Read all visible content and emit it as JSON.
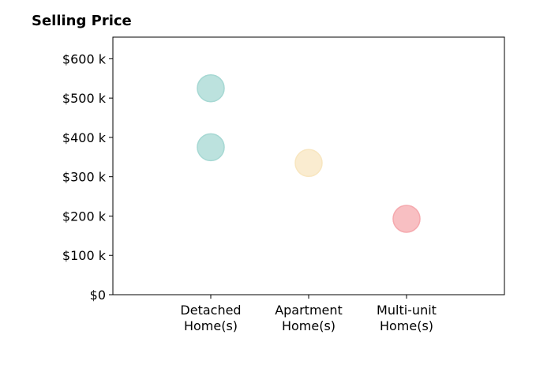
{
  "chart_data": {
    "type": "scatter",
    "title": "Selling Price",
    "xlabel": "",
    "ylabel": "",
    "categories": [
      [
        "Detached",
        "Home(s)"
      ],
      [
        "Apartment",
        "Home(s)"
      ],
      [
        "Multi-unit",
        "Home(s)"
      ]
    ],
    "points": [
      {
        "category_index": 0,
        "value": 525000,
        "color": "#a6d8d3"
      },
      {
        "category_index": 0,
        "value": 375000,
        "color": "#a6d8d3"
      },
      {
        "category_index": 1,
        "value": 335000,
        "color": "#f8e6c0"
      },
      {
        "category_index": 2,
        "value": 193000,
        "color": "#f5a9ae"
      }
    ],
    "ylim": [
      0,
      655000
    ],
    "yticks": [
      {
        "value": 0,
        "label": "$0"
      },
      {
        "value": 100000,
        "label": "$100 k"
      },
      {
        "value": 200000,
        "label": "$200 k"
      },
      {
        "value": 300000,
        "label": "$300 k"
      },
      {
        "value": 400000,
        "label": "$400 k"
      },
      {
        "value": 500000,
        "label": "$500 k"
      },
      {
        "value": 600000,
        "label": "$600 k"
      }
    ],
    "grid": false,
    "legend": "none"
  }
}
